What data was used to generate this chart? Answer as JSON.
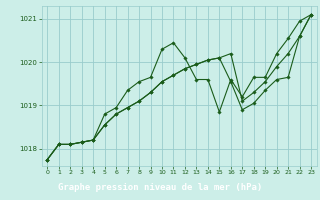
{
  "title": "Graphe pression niveau de la mer (hPa)",
  "bg_color": "#cceee8",
  "plot_bg_color": "#cceee8",
  "grid_color": "#99cccc",
  "line_color": "#1a5c1a",
  "xlabel_bg": "#2a6e2a",
  "xlabel_fg": "#ffffff",
  "xlim": [
    -0.5,
    23.5
  ],
  "ylim": [
    1017.6,
    1021.3
  ],
  "yticks": [
    1018,
    1019,
    1020,
    1021
  ],
  "xticks": [
    0,
    1,
    2,
    3,
    4,
    5,
    6,
    7,
    8,
    9,
    10,
    11,
    12,
    13,
    14,
    15,
    16,
    17,
    18,
    19,
    20,
    21,
    22,
    23
  ],
  "series": [
    [
      1017.75,
      1018.1,
      1018.1,
      1018.15,
      1018.2,
      1018.8,
      1018.95,
      1019.35,
      1019.55,
      1019.65,
      1020.3,
      1020.45,
      1020.1,
      1019.6,
      1019.6,
      1018.85,
      1019.6,
      1019.2,
      1019.65,
      1019.65,
      1020.2,
      1020.55,
      1020.95,
      1021.1
    ],
    [
      1017.75,
      1018.1,
      1018.1,
      1018.15,
      1018.2,
      1018.55,
      1018.8,
      1018.95,
      1019.1,
      1019.3,
      1019.55,
      1019.7,
      1019.85,
      1019.95,
      1020.05,
      1020.1,
      1020.2,
      1019.1,
      1019.3,
      1019.55,
      1019.9,
      1020.2,
      1020.6,
      1021.1
    ],
    [
      1017.75,
      1018.1,
      1018.1,
      1018.15,
      1018.2,
      1018.55,
      1018.8,
      1018.95,
      1019.1,
      1019.3,
      1019.55,
      1019.7,
      1019.85,
      1019.95,
      1020.05,
      1020.1,
      1019.55,
      1018.9,
      1019.05,
      1019.35,
      1019.6,
      1019.65,
      1020.6,
      1021.1
    ]
  ]
}
